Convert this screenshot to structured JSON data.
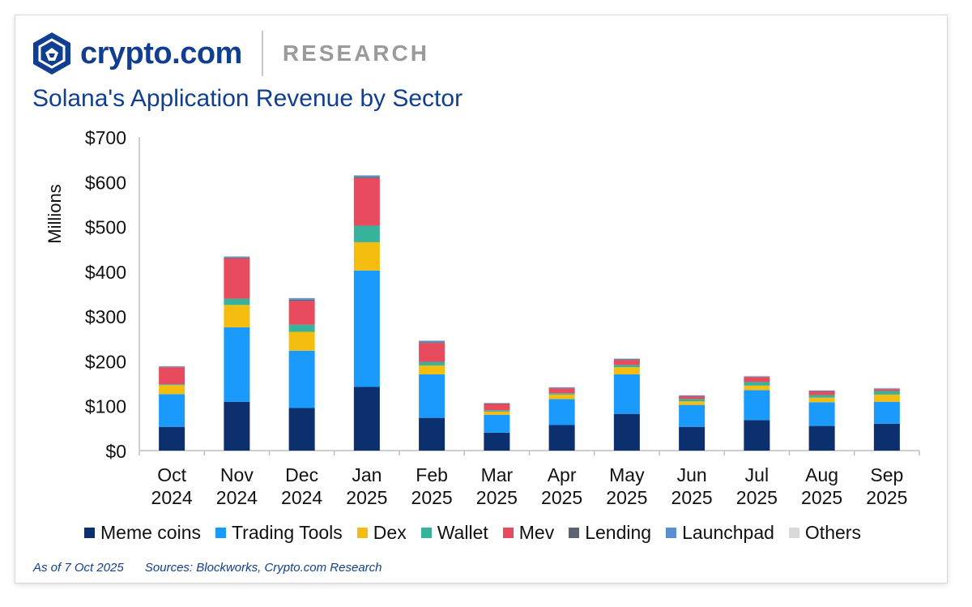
{
  "header": {
    "brand": "crypto.com",
    "section": "RESEARCH"
  },
  "chart_data": {
    "type": "bar",
    "stacked": true,
    "title": "Solana's Application Revenue by Sector",
    "ylabel": "Millions",
    "xlabel": "",
    "ylim": [
      0,
      700
    ],
    "yticks": [
      0,
      100,
      200,
      300,
      400,
      500,
      600,
      700
    ],
    "ytick_labels": [
      "$0",
      "$100",
      "$200",
      "$300",
      "$400",
      "$500",
      "$600",
      "$700"
    ],
    "categories": [
      [
        "Oct",
        "2024"
      ],
      [
        "Nov",
        "2024"
      ],
      [
        "Dec",
        "2024"
      ],
      [
        "Jan",
        "2025"
      ],
      [
        "Feb",
        "2025"
      ],
      [
        "Mar",
        "2025"
      ],
      [
        "Apr",
        "2025"
      ],
      [
        "May",
        "2025"
      ],
      [
        "Jun",
        "2025"
      ],
      [
        "Jul",
        "2025"
      ],
      [
        "Aug",
        "2025"
      ],
      [
        "Sep",
        "2025"
      ]
    ],
    "series": [
      {
        "name": "Meme coins",
        "color": "#0c2f6e",
        "values": [
          53,
          109,
          95,
          142,
          73,
          40,
          57,
          82,
          53,
          68,
          55,
          60
        ]
      },
      {
        "name": "Trading Tools",
        "color": "#1a9bfc",
        "values": [
          73,
          166,
          128,
          260,
          97,
          40,
          58,
          88,
          49,
          67,
          53,
          49
        ]
      },
      {
        "name": "Dex",
        "color": "#f5bd0f",
        "values": [
          20,
          50,
          42,
          63,
          20,
          7,
          10,
          16,
          8,
          10,
          10,
          16
        ]
      },
      {
        "name": "Wallet",
        "color": "#36b39a",
        "values": [
          2,
          14,
          16,
          37,
          8,
          3,
          3,
          5,
          5,
          8,
          6,
          8
        ]
      },
      {
        "name": "Mev",
        "color": "#e84b5e",
        "values": [
          38,
          90,
          53,
          106,
          42,
          14,
          11,
          11,
          6,
          11,
          8,
          4
        ]
      },
      {
        "name": "Lending",
        "color": "#5b6570",
        "values": [
          1,
          2,
          3,
          3,
          2,
          1,
          1,
          2,
          1,
          1,
          1,
          1
        ]
      },
      {
        "name": "Launchpad",
        "color": "#5b8fd1",
        "values": [
          1,
          2,
          3,
          3,
          3,
          1,
          1,
          1,
          1,
          1,
          1,
          1
        ]
      },
      {
        "name": "Others",
        "color": "#d9d9d9",
        "values": [
          1,
          1,
          1,
          1,
          1,
          1,
          1,
          1,
          1,
          1,
          1,
          1
        ]
      }
    ]
  },
  "footer": {
    "asof": "As of 7 Oct 2025",
    "sources": "Sources: Blockworks, Crypto.com Research"
  }
}
